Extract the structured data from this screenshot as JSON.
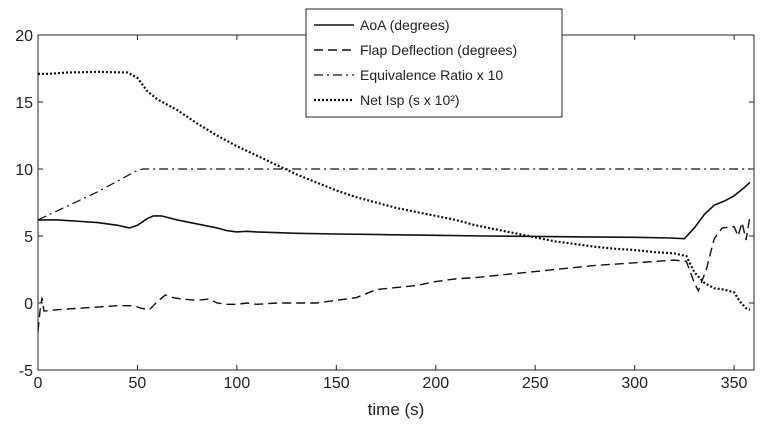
{
  "chart_data": {
    "type": "line",
    "title": "",
    "xlabel": "time (s)",
    "ylabel": "",
    "xlim": [
      0,
      360
    ],
    "ylim": [
      -5,
      20
    ],
    "xticks": [
      0,
      50,
      100,
      150,
      200,
      250,
      300,
      350
    ],
    "yticks": [
      -5,
      0,
      5,
      10,
      15,
      20
    ],
    "grid": false,
    "legend_position": "top-center",
    "series": [
      {
        "name": "AoA (degrees)",
        "style": "solid",
        "points": [
          [
            0,
            6.2
          ],
          [
            10,
            6.2
          ],
          [
            20,
            6.1
          ],
          [
            30,
            6.0
          ],
          [
            40,
            5.8
          ],
          [
            46,
            5.6
          ],
          [
            50,
            5.8
          ],
          [
            55,
            6.3
          ],
          [
            58,
            6.5
          ],
          [
            62,
            6.5
          ],
          [
            70,
            6.2
          ],
          [
            80,
            5.9
          ],
          [
            90,
            5.6
          ],
          [
            95,
            5.4
          ],
          [
            100,
            5.3
          ],
          [
            105,
            5.35
          ],
          [
            110,
            5.3
          ],
          [
            130,
            5.2
          ],
          [
            150,
            5.15
          ],
          [
            175,
            5.1
          ],
          [
            200,
            5.05
          ],
          [
            225,
            5.0
          ],
          [
            250,
            4.97
          ],
          [
            275,
            4.93
          ],
          [
            300,
            4.9
          ],
          [
            318,
            4.85
          ],
          [
            325,
            4.8
          ],
          [
            330,
            5.6
          ],
          [
            335,
            6.6
          ],
          [
            340,
            7.3
          ],
          [
            345,
            7.6
          ],
          [
            350,
            8.0
          ],
          [
            355,
            8.6
          ],
          [
            358,
            9.0
          ]
        ]
      },
      {
        "name": "Flap Deflection (degrees)",
        "style": "dashed",
        "points": [
          [
            0,
            -2.1
          ],
          [
            1,
            -0.6
          ],
          [
            2,
            0.4
          ],
          [
            3,
            -0.6
          ],
          [
            10,
            -0.5
          ],
          [
            20,
            -0.4
          ],
          [
            30,
            -0.3
          ],
          [
            40,
            -0.2
          ],
          [
            48,
            -0.2
          ],
          [
            52,
            -0.4
          ],
          [
            56,
            -0.5
          ],
          [
            60,
            0.1
          ],
          [
            64,
            0.6
          ],
          [
            68,
            0.4
          ],
          [
            72,
            0.3
          ],
          [
            80,
            0.2
          ],
          [
            86,
            0.3
          ],
          [
            90,
            0.0
          ],
          [
            95,
            -0.1
          ],
          [
            100,
            -0.1
          ],
          [
            105,
            0.0
          ],
          [
            110,
            -0.1
          ],
          [
            120,
            0.0
          ],
          [
            140,
            0.0
          ],
          [
            150,
            0.2
          ],
          [
            160,
            0.4
          ],
          [
            170,
            1.0
          ],
          [
            190,
            1.3
          ],
          [
            200,
            1.6
          ],
          [
            210,
            1.8
          ],
          [
            220,
            1.9
          ],
          [
            240,
            2.2
          ],
          [
            260,
            2.5
          ],
          [
            280,
            2.8
          ],
          [
            300,
            3.0
          ],
          [
            320,
            3.2
          ],
          [
            326,
            3.1
          ],
          [
            330,
            1.5
          ],
          [
            332,
            0.9
          ],
          [
            336,
            2.5
          ],
          [
            340,
            4.8
          ],
          [
            344,
            5.6
          ],
          [
            350,
            5.7
          ],
          [
            352,
            5.0
          ],
          [
            354,
            6.0
          ],
          [
            356,
            4.7
          ],
          [
            358,
            6.5
          ]
        ]
      },
      {
        "name": "Equivalence Ratio x 10",
        "style": "dashdot",
        "points": [
          [
            0,
            6.2
          ],
          [
            10,
            6.9
          ],
          [
            20,
            7.6
          ],
          [
            30,
            8.3
          ],
          [
            40,
            9.1
          ],
          [
            50,
            9.9
          ],
          [
            53,
            10.0
          ],
          [
            358,
            10.0
          ]
        ]
      },
      {
        "name": "Net Isp (s x 10²)",
        "style": "dotted",
        "points": [
          [
            0,
            17.1
          ],
          [
            5,
            17.1
          ],
          [
            15,
            17.2
          ],
          [
            30,
            17.25
          ],
          [
            45,
            17.2
          ],
          [
            50,
            16.8
          ],
          [
            55,
            15.8
          ],
          [
            60,
            15.2
          ],
          [
            70,
            14.4
          ],
          [
            80,
            13.4
          ],
          [
            90,
            12.5
          ],
          [
            100,
            11.7
          ],
          [
            110,
            11.0
          ],
          [
            120,
            10.3
          ],
          [
            130,
            9.6
          ],
          [
            140,
            9.0
          ],
          [
            150,
            8.4
          ],
          [
            160,
            7.9
          ],
          [
            170,
            7.5
          ],
          [
            180,
            7.1
          ],
          [
            190,
            6.8
          ],
          [
            200,
            6.5
          ],
          [
            210,
            6.2
          ],
          [
            220,
            5.8
          ],
          [
            230,
            5.5
          ],
          [
            240,
            5.2
          ],
          [
            250,
            4.9
          ],
          [
            260,
            4.6
          ],
          [
            270,
            4.4
          ],
          [
            280,
            4.2
          ],
          [
            290,
            4.05
          ],
          [
            300,
            3.95
          ],
          [
            310,
            3.8
          ],
          [
            320,
            3.7
          ],
          [
            326,
            3.5
          ],
          [
            330,
            2.3
          ],
          [
            335,
            1.5
          ],
          [
            340,
            1.1
          ],
          [
            345,
            1.0
          ],
          [
            350,
            0.8
          ],
          [
            353,
            0.1
          ],
          [
            356,
            -0.4
          ],
          [
            358,
            -0.5
          ]
        ]
      }
    ]
  }
}
